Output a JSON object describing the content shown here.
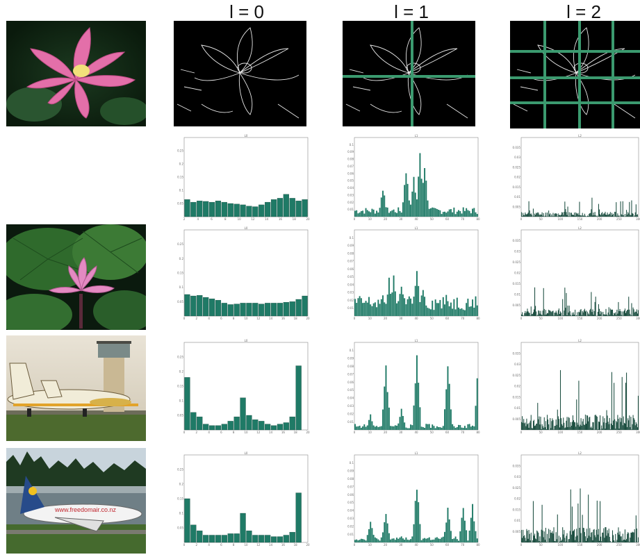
{
  "headers": [
    "l = 0",
    "l = 1",
    "l = 2"
  ],
  "colors": {
    "bar": "#1f7a66",
    "bar_dense": "#1a4d3f",
    "grid_line": "#3b9a6f",
    "edge_bg": "#000000",
    "edge_stroke": "#e8e8e8"
  },
  "images": [
    {
      "name": "lotus-photo-1",
      "subject": "pink lotus flower"
    },
    {
      "name": "lotus-photo-2",
      "subject": "pink lotus with lily pads"
    },
    {
      "name": "airplane-photo-1",
      "subject": "propeller airplane near control tower"
    },
    {
      "name": "airplane-photo-2",
      "subject": "jet airliner with trees"
    }
  ],
  "footer_text": "www.freedomair.co.nz",
  "chart_data": [
    {
      "type": "bar",
      "row": 0,
      "level": 0,
      "title": "L0",
      "x": [
        1,
        2,
        3,
        4,
        5,
        6,
        7,
        8,
        9,
        10,
        11,
        12,
        13,
        14,
        15,
        16,
        17,
        18,
        19,
        20
      ],
      "values": [
        0.065,
        0.055,
        0.06,
        0.058,
        0.055,
        0.06,
        0.055,
        0.05,
        0.048,
        0.045,
        0.04,
        0.038,
        0.045,
        0.055,
        0.065,
        0.07,
        0.085,
        0.07,
        0.06,
        0.065
      ],
      "ylim": [
        0,
        0.3
      ],
      "yticks": [
        "0.05",
        "0.1",
        "0.15",
        "0.2",
        "0.25"
      ],
      "xticks": [
        "2",
        "4",
        "6",
        "8",
        "10",
        "12",
        "14",
        "16",
        "18",
        "20"
      ]
    },
    {
      "type": "bar",
      "row": 1,
      "level": 0,
      "title": "L0",
      "x": [
        1,
        2,
        3,
        4,
        5,
        6,
        7,
        8,
        9,
        10,
        11,
        12,
        13,
        14,
        15,
        16,
        17,
        18,
        19,
        20
      ],
      "values": [
        0.075,
        0.07,
        0.072,
        0.065,
        0.06,
        0.055,
        0.045,
        0.04,
        0.042,
        0.045,
        0.045,
        0.045,
        0.042,
        0.045,
        0.045,
        0.045,
        0.048,
        0.05,
        0.058,
        0.07
      ],
      "ylim": [
        0,
        0.3
      ],
      "yticks": [
        "0.05",
        "0.1",
        "0.15",
        "0.2",
        "0.25"
      ],
      "xticks": [
        "0",
        "2",
        "4",
        "6",
        "8",
        "10",
        "12",
        "14",
        "16",
        "18",
        "20"
      ]
    },
    {
      "type": "bar",
      "row": 2,
      "level": 0,
      "title": "L0",
      "x": [
        1,
        2,
        3,
        4,
        5,
        6,
        7,
        8,
        9,
        10,
        11,
        12,
        13,
        14,
        15,
        16,
        17,
        18,
        19,
        20
      ],
      "values": [
        0.18,
        0.06,
        0.045,
        0.02,
        0.015,
        0.015,
        0.02,
        0.03,
        0.045,
        0.11,
        0.05,
        0.035,
        0.03,
        0.02,
        0.015,
        0.02,
        0.025,
        0.045,
        0.22,
        0.0
      ],
      "ylim": [
        0,
        0.3
      ],
      "yticks": [
        "0.05",
        "0.1",
        "0.15",
        "0.2",
        "0.25"
      ],
      "xticks": [
        "0",
        "2",
        "4",
        "6",
        "8",
        "10",
        "12",
        "14",
        "16",
        "18",
        "20"
      ]
    },
    {
      "type": "bar",
      "row": 3,
      "level": 0,
      "title": "L0",
      "x": [
        1,
        2,
        3,
        4,
        5,
        6,
        7,
        8,
        9,
        10,
        11,
        12,
        13,
        14,
        15,
        16,
        17,
        18,
        19,
        20
      ],
      "values": [
        0.15,
        0.06,
        0.04,
        0.025,
        0.025,
        0.025,
        0.025,
        0.03,
        0.03,
        0.1,
        0.04,
        0.025,
        0.025,
        0.025,
        0.02,
        0.02,
        0.025,
        0.035,
        0.17,
        0.0
      ],
      "ylim": [
        0,
        0.3
      ],
      "yticks": [
        "0.05",
        "0.1",
        "0.15",
        "0.2",
        "0.25"
      ],
      "xticks": [
        "0",
        "2",
        "4",
        "6",
        "8",
        "10",
        "12",
        "14",
        "16",
        "18",
        "20"
      ]
    }
  ],
  "hist_labels": {
    "l1_title": "L1",
    "l2_title": "L2",
    "l1_yticks": [
      "0.01",
      "0.02",
      "0.03",
      "0.04",
      "0.05",
      "0.06",
      "0.07",
      "0.08",
      "0.09",
      "0.1"
    ],
    "l1_xticks": [
      "0",
      "10",
      "20",
      "30",
      "40",
      "50",
      "60",
      "70",
      "80"
    ],
    "l2_yticks": [
      "0.005",
      "0.01",
      "0.015",
      "0.02",
      "0.025",
      "0.03",
      "0.035"
    ],
    "l2_xticks": [
      "0",
      "50",
      "100",
      "150",
      "200",
      "250",
      "300"
    ]
  }
}
